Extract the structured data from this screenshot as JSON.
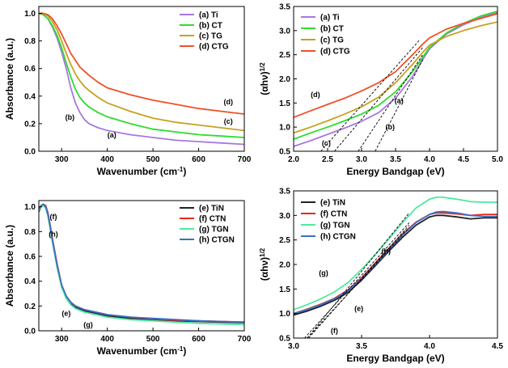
{
  "chart_data": [
    {
      "panel": "top-left",
      "type": "line",
      "xlabel": "Wavenumber (cm-1)",
      "ylabel": "Absorbance (a.u.)",
      "xlim": [
        250,
        700
      ],
      "ylim": [
        0,
        1.05
      ],
      "xticks": [
        300,
        400,
        500,
        600,
        700
      ],
      "yticks": [
        0.0,
        0.2,
        0.4,
        0.6,
        0.8,
        1.0
      ],
      "xtick_labels": [
        "300",
        "400",
        "500",
        "600",
        "700"
      ],
      "ytick_labels": [
        "0.0",
        "0.2",
        "0.4",
        "0.6",
        "0.8",
        "1.0"
      ],
      "legend_position": "top-right",
      "series": [
        {
          "name": "(a) Ti",
          "color": "#a678e0",
          "x": [
            250,
            260,
            270,
            280,
            290,
            300,
            310,
            320,
            330,
            340,
            350,
            360,
            380,
            400,
            450,
            500,
            550,
            600,
            650,
            700
          ],
          "values": [
            1.0,
            0.99,
            0.96,
            0.9,
            0.82,
            0.72,
            0.6,
            0.46,
            0.35,
            0.28,
            0.23,
            0.2,
            0.17,
            0.15,
            0.12,
            0.1,
            0.08,
            0.07,
            0.06,
            0.05
          ]
        },
        {
          "name": "(b) CT",
          "color": "#2edc2e",
          "x": [
            250,
            260,
            270,
            280,
            290,
            300,
            310,
            320,
            330,
            340,
            350,
            360,
            380,
            400,
            450,
            500,
            550,
            600,
            650,
            700
          ],
          "values": [
            1.0,
            0.99,
            0.96,
            0.91,
            0.84,
            0.75,
            0.64,
            0.54,
            0.45,
            0.39,
            0.35,
            0.32,
            0.28,
            0.25,
            0.2,
            0.16,
            0.14,
            0.12,
            0.11,
            0.1
          ]
        },
        {
          "name": "(c) TG",
          "color": "#c8a020",
          "x": [
            250,
            260,
            270,
            280,
            290,
            300,
            310,
            320,
            330,
            340,
            350,
            360,
            380,
            400,
            450,
            500,
            550,
            600,
            650,
            700
          ],
          "values": [
            1.0,
            1.0,
            0.98,
            0.94,
            0.88,
            0.8,
            0.71,
            0.63,
            0.56,
            0.51,
            0.47,
            0.44,
            0.39,
            0.35,
            0.29,
            0.24,
            0.21,
            0.19,
            0.17,
            0.15
          ]
        },
        {
          "name": "(d) CTG",
          "color": "#f0502a",
          "x": [
            250,
            260,
            270,
            280,
            290,
            300,
            310,
            320,
            330,
            340,
            350,
            360,
            380,
            400,
            450,
            500,
            550,
            600,
            650,
            700
          ],
          "values": [
            1.0,
            1.0,
            0.99,
            0.96,
            0.91,
            0.85,
            0.78,
            0.71,
            0.66,
            0.61,
            0.58,
            0.55,
            0.5,
            0.46,
            0.41,
            0.37,
            0.34,
            0.31,
            0.29,
            0.27
          ]
        }
      ],
      "annotations": [
        {
          "text": "(a)",
          "at": [
            410,
            0.1
          ]
        },
        {
          "text": "(b)",
          "at": [
            318,
            0.23
          ]
        },
        {
          "text": "(c)",
          "at": [
            665,
            0.2
          ]
        },
        {
          "text": "(d)",
          "at": [
            665,
            0.34
          ]
        }
      ]
    },
    {
      "panel": "top-right",
      "type": "line",
      "xlabel": "Energy Bandgap (eV)",
      "ylabel": "(αhν)1/2",
      "xlim": [
        2.0,
        5.0
      ],
      "ylim": [
        0.5,
        3.5
      ],
      "xticks": [
        2.0,
        2.5,
        3.0,
        3.5,
        4.0,
        4.5,
        5.0
      ],
      "yticks": [
        0.5,
        1.0,
        1.5,
        2.0,
        2.5,
        3.0,
        3.5
      ],
      "xtick_labels": [
        "2.0",
        "2.5",
        "3.0",
        "3.5",
        "4.0",
        "4.5",
        "5.0"
      ],
      "ytick_labels": [
        "0.5",
        "1.0",
        "1.5",
        "2.0",
        "2.5",
        "3.0",
        "3.5"
      ],
      "legend_position": "top-left",
      "series": [
        {
          "name": "(a) Ti",
          "color": "#a678e0",
          "x": [
            2.0,
            2.25,
            2.5,
            2.75,
            3.0,
            3.25,
            3.5,
            3.75,
            3.9,
            4.0,
            4.25,
            4.5,
            4.75,
            5.0
          ],
          "values": [
            0.6,
            0.72,
            0.85,
            0.98,
            1.12,
            1.3,
            1.6,
            2.05,
            2.4,
            2.62,
            2.93,
            3.12,
            3.27,
            3.38
          ]
        },
        {
          "name": "(b) CT",
          "color": "#2edc2e",
          "x": [
            2.0,
            2.25,
            2.5,
            2.75,
            3.0,
            3.25,
            3.5,
            3.75,
            3.9,
            4.0,
            4.25,
            4.5,
            4.75,
            5.0
          ],
          "values": [
            0.75,
            0.88,
            1.0,
            1.13,
            1.27,
            1.45,
            1.73,
            2.15,
            2.45,
            2.65,
            2.95,
            3.15,
            3.3,
            3.4
          ]
        },
        {
          "name": "(c) TG",
          "color": "#c8a020",
          "x": [
            2.0,
            2.25,
            2.5,
            2.75,
            3.0,
            3.25,
            3.5,
            3.75,
            3.9,
            4.0,
            4.25,
            4.5,
            4.75,
            5.0
          ],
          "values": [
            0.88,
            1.0,
            1.13,
            1.27,
            1.42,
            1.62,
            1.92,
            2.3,
            2.55,
            2.7,
            2.88,
            3.0,
            3.1,
            3.18
          ]
        },
        {
          "name": "(d) CTG",
          "color": "#f0502a",
          "x": [
            2.0,
            2.25,
            2.5,
            2.75,
            3.0,
            3.25,
            3.5,
            3.75,
            3.9,
            4.0,
            4.25,
            4.5,
            4.75,
            5.0
          ],
          "values": [
            1.2,
            1.34,
            1.47,
            1.6,
            1.75,
            1.92,
            2.15,
            2.5,
            2.72,
            2.85,
            3.03,
            3.15,
            3.25,
            3.35
          ]
        }
      ],
      "tangent_lines": [
        {
          "label": "(a)",
          "x": [
            3.2,
            3.9
          ],
          "values": [
            0.5,
            2.4
          ]
        },
        {
          "label": "(b)",
          "x": [
            2.95,
            3.9
          ],
          "values": [
            0.5,
            2.5
          ]
        },
        {
          "label": "(c)",
          "x": [
            2.6,
            3.9
          ],
          "values": [
            0.5,
            2.65
          ]
        },
        {
          "label": "(d)",
          "x": [
            2.4,
            3.85
          ],
          "values": [
            0.5,
            2.8
          ]
        }
      ],
      "annotations": [
        {
          "text": "(a)",
          "at": [
            3.55,
            1.5
          ]
        },
        {
          "text": "(b)",
          "at": [
            3.42,
            0.95
          ]
        },
        {
          "text": "(c)",
          "at": [
            2.48,
            0.62
          ]
        },
        {
          "text": "(d)",
          "at": [
            2.32,
            1.62
          ]
        }
      ]
    },
    {
      "panel": "bottom-left",
      "type": "line",
      "xlabel": "Wavenumber (cm-1)",
      "ylabel": "Absorbance (a.u.)",
      "xlim": [
        250,
        700
      ],
      "ylim": [
        0,
        1.05
      ],
      "xticks": [
        300,
        400,
        500,
        600,
        700
      ],
      "yticks": [
        0.0,
        0.2,
        0.4,
        0.6,
        0.8,
        1.0
      ],
      "xtick_labels": [
        "300",
        "400",
        "500",
        "600",
        "700"
      ],
      "ytick_labels": [
        "0.0",
        "0.2",
        "0.4",
        "0.6",
        "0.8",
        "1.0"
      ],
      "legend_position": "top-right",
      "series": [
        {
          "name": "(e) TiN",
          "color": "#222222",
          "x": [
            250,
            255,
            260,
            265,
            270,
            275,
            280,
            290,
            300,
            310,
            320,
            330,
            350,
            400,
            450,
            500,
            550,
            600,
            650,
            700
          ],
          "values": [
            0.96,
            1.0,
            1.02,
            1.0,
            0.93,
            0.83,
            0.72,
            0.52,
            0.36,
            0.27,
            0.22,
            0.19,
            0.16,
            0.12,
            0.1,
            0.09,
            0.08,
            0.075,
            0.07,
            0.065
          ]
        },
        {
          "name": "(f) CTN",
          "color": "#e8281e",
          "x": [
            250,
            255,
            260,
            265,
            270,
            275,
            280,
            290,
            300,
            310,
            320,
            330,
            350,
            400,
            450,
            500,
            550,
            600,
            650,
            700
          ],
          "values": [
            0.97,
            1.01,
            1.02,
            1.01,
            0.95,
            0.85,
            0.74,
            0.54,
            0.37,
            0.28,
            0.23,
            0.2,
            0.17,
            0.13,
            0.11,
            0.095,
            0.085,
            0.08,
            0.075,
            0.07
          ]
        },
        {
          "name": "(g) TGN",
          "color": "#4ee8a0",
          "x": [
            250,
            255,
            260,
            265,
            270,
            275,
            280,
            290,
            300,
            310,
            320,
            330,
            350,
            400,
            450,
            500,
            550,
            600,
            650,
            700
          ],
          "values": [
            0.97,
            1.0,
            1.01,
            0.99,
            0.92,
            0.82,
            0.71,
            0.51,
            0.35,
            0.26,
            0.21,
            0.18,
            0.15,
            0.11,
            0.09,
            0.08,
            0.07,
            0.06,
            0.055,
            0.05
          ]
        },
        {
          "name": "(h) CTGN",
          "color": "#3c6ec8",
          "x": [
            250,
            255,
            260,
            265,
            270,
            275,
            280,
            290,
            300,
            310,
            320,
            330,
            350,
            400,
            450,
            500,
            550,
            600,
            650,
            700
          ],
          "values": [
            0.98,
            1.01,
            1.02,
            1.0,
            0.94,
            0.84,
            0.73,
            0.53,
            0.37,
            0.28,
            0.23,
            0.2,
            0.17,
            0.13,
            0.11,
            0.1,
            0.09,
            0.08,
            0.075,
            0.07
          ]
        }
      ],
      "annotations": [
        {
          "text": "(f)",
          "at": [
            282,
            0.9
          ]
        },
        {
          "text": "(h)",
          "at": [
            282,
            0.76
          ]
        },
        {
          "text": "(e)",
          "at": [
            310,
            0.12
          ]
        },
        {
          "text": "(g)",
          "at": [
            358,
            0.03
          ]
        }
      ]
    },
    {
      "panel": "bottom-right",
      "type": "line",
      "xlabel": "Energy Bandgap (eV)",
      "ylabel": "(αhν)1/2",
      "xlim": [
        3.0,
        4.5
      ],
      "ylim": [
        0.5,
        3.5
      ],
      "xticks": [
        3.0,
        3.5,
        4.0,
        4.5
      ],
      "yticks": [
        0.5,
        1.0,
        1.5,
        2.0,
        2.5,
        3.0,
        3.5
      ],
      "xtick_labels": [
        "3.0",
        "3.5",
        "4.0",
        "4.5"
      ],
      "ytick_labels": [
        "0.5",
        "1.0",
        "1.5",
        "2.0",
        "2.5",
        "3.0",
        "3.5"
      ],
      "legend_position": "top-left",
      "series": [
        {
          "name": "(e) TiN",
          "color": "#222222",
          "x": [
            3.0,
            3.1,
            3.2,
            3.3,
            3.4,
            3.5,
            3.6,
            3.7,
            3.8,
            3.9,
            4.0,
            4.05,
            4.1,
            4.2,
            4.3,
            4.4,
            4.5
          ],
          "values": [
            0.97,
            1.05,
            1.15,
            1.27,
            1.43,
            1.68,
            1.97,
            2.27,
            2.55,
            2.8,
            2.97,
            3.0,
            3.0,
            2.97,
            2.93,
            2.95,
            2.95
          ]
        },
        {
          "name": "(f) CTN",
          "color": "#e8281e",
          "x": [
            3.0,
            3.1,
            3.2,
            3.3,
            3.4,
            3.5,
            3.6,
            3.7,
            3.8,
            3.9,
            4.0,
            4.05,
            4.1,
            4.2,
            4.3,
            4.4,
            4.5
          ],
          "values": [
            1.0,
            1.09,
            1.19,
            1.31,
            1.48,
            1.73,
            2.03,
            2.33,
            2.62,
            2.86,
            3.02,
            3.05,
            3.05,
            3.03,
            3.0,
            3.02,
            3.02
          ]
        },
        {
          "name": "(g) TGN",
          "color": "#4ee8a0",
          "x": [
            3.0,
            3.1,
            3.2,
            3.3,
            3.4,
            3.5,
            3.6,
            3.7,
            3.8,
            3.9,
            4.0,
            4.05,
            4.1,
            4.2,
            4.3,
            4.4,
            4.5
          ],
          "values": [
            1.08,
            1.18,
            1.3,
            1.44,
            1.63,
            1.9,
            2.2,
            2.52,
            2.85,
            3.15,
            3.33,
            3.37,
            3.37,
            3.33,
            3.28,
            3.27,
            3.27
          ]
        },
        {
          "name": "(h) CTGN",
          "color": "#3c6ec8",
          "x": [
            3.0,
            3.1,
            3.2,
            3.3,
            3.4,
            3.5,
            3.6,
            3.7,
            3.8,
            3.9,
            4.0,
            4.05,
            4.1,
            4.2,
            4.3,
            4.4,
            4.5
          ],
          "values": [
            1.0,
            1.08,
            1.18,
            1.3,
            1.46,
            1.71,
            2.0,
            2.3,
            2.6,
            2.85,
            3.02,
            3.07,
            3.08,
            3.05,
            3.0,
            2.98,
            2.98
          ]
        }
      ],
      "tangent_lines": [
        {
          "label": "(e)",
          "x": [
            3.1,
            3.85
          ],
          "values": [
            0.5,
            2.75
          ]
        },
        {
          "label": "(f)",
          "x": [
            3.08,
            3.85
          ],
          "values": [
            0.5,
            2.85
          ]
        },
        {
          "label": "(g)",
          "x": [
            3.1,
            3.85
          ],
          "values": [
            0.5,
            3.05
          ]
        },
        {
          "label": "(h)",
          "x": [
            3.11,
            3.85
          ],
          "values": [
            0.5,
            2.8
          ]
        }
      ],
      "annotations": [
        {
          "text": "(e)",
          "at": [
            3.48,
            1.05
          ]
        },
        {
          "text": "(g)",
          "at": [
            3.22,
            1.78
          ]
        },
        {
          "text": "(h)",
          "at": [
            3.68,
            2.22
          ]
        },
        {
          "text": "(f)",
          "at": [
            3.3,
            0.6
          ]
        }
      ]
    }
  ]
}
